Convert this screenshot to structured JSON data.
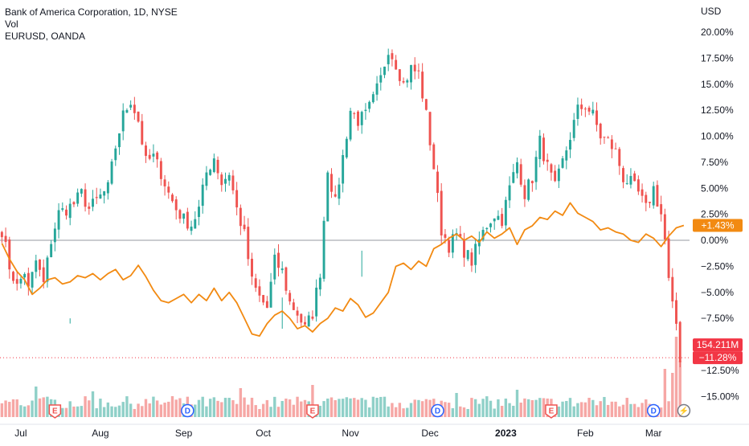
{
  "legend": {
    "line1": "Bank of America Corporation, 1D, NYSE",
    "line2": "Vol",
    "line3": "EURUSD, OANDA"
  },
  "currency_label": "USD",
  "colors": {
    "up": "#26a69a",
    "down": "#ef5350",
    "up_volume": "#8fd0c8",
    "down_volume": "#f6a7a5",
    "compare_line": "#f28a12",
    "zero_line": "#9598a1",
    "tag_up": "#f28a12",
    "tag_down": "#f23645",
    "marker_earnings": "#ef5350",
    "marker_dividend": "#2962ff"
  },
  "tags": {
    "compare_value": "+1.43%",
    "volume_value": "154.211M",
    "price_change": "−11.28%"
  },
  "chart_data": {
    "type": "candlestick",
    "y_axis": {
      "unit": "percent",
      "ylim": [
        -17.0,
        21.2
      ],
      "tick_values": [
        20,
        17.5,
        15,
        12.5,
        10,
        7.5,
        5,
        2.5,
        0,
        -2.5,
        -5,
        -7.5,
        -12.5,
        -15
      ],
      "tick_labels": [
        "20.00%",
        "17.50%",
        "15.00%",
        "12.50%",
        "10.00%",
        "7.50%",
        "5.00%",
        "2.50%",
        "0.00%",
        "−2.50%",
        "−5.00%",
        "−7.50%",
        "−12.50%",
        "−15.00%"
      ]
    },
    "x_axis": {
      "labels": [
        "Jul",
        "Aug",
        "Sep",
        "Oct",
        "Nov",
        "Dec",
        "2023",
        "Feb",
        "Mar"
      ],
      "label_index": [
        5,
        26,
        48,
        69,
        92,
        113,
        133,
        154,
        172
      ],
      "bold": [
        "2023"
      ]
    },
    "n_bars": 182,
    "series": [
      {
        "name": "Bank of America Corporation",
        "style": "candles",
        "anchors": [
          [
            0,
            1.0
          ],
          [
            2,
            -2.5
          ],
          [
            4,
            -4.5
          ],
          [
            6,
            -3.0
          ],
          [
            7,
            -4.8
          ],
          [
            9,
            -2.0
          ],
          [
            11,
            -4.2
          ],
          [
            13,
            0.0
          ],
          [
            15,
            2.6
          ],
          [
            17,
            3.0
          ],
          [
            19,
            3.5
          ],
          [
            21,
            4.5
          ],
          [
            23,
            3.0
          ],
          [
            25,
            3.8
          ],
          [
            28,
            5.0
          ],
          [
            30,
            9.0
          ],
          [
            32,
            12.0
          ],
          [
            34,
            13.5
          ],
          [
            36,
            11.5
          ],
          [
            38,
            7.5
          ],
          [
            40,
            8.0
          ],
          [
            42,
            6.5
          ],
          [
            44,
            4.5
          ],
          [
            46,
            3.0
          ],
          [
            48,
            2.0
          ],
          [
            50,
            1.5
          ],
          [
            52,
            3.0
          ],
          [
            54,
            6.5
          ],
          [
            56,
            8.0
          ],
          [
            58,
            5.5
          ],
          [
            60,
            6.5
          ],
          [
            62,
            3.0
          ],
          [
            64,
            0.5
          ],
          [
            66,
            -4.0
          ],
          [
            68,
            -5.5
          ],
          [
            70,
            -6.5
          ],
          [
            72,
            -2.0
          ],
          [
            74,
            -3.0
          ],
          [
            76,
            -6.0
          ],
          [
            78,
            -7.0
          ],
          [
            80,
            -8.5
          ],
          [
            82,
            -7.0
          ],
          [
            84,
            -3.0
          ],
          [
            86,
            7.0
          ],
          [
            88,
            3.5
          ],
          [
            90,
            8.0
          ],
          [
            92,
            12.5
          ],
          [
            94,
            11.5
          ],
          [
            96,
            12.0
          ],
          [
            98,
            13.5
          ],
          [
            100,
            15.5
          ],
          [
            102,
            18.5
          ],
          [
            104,
            17.0
          ],
          [
            106,
            15.0
          ],
          [
            108,
            16.5
          ],
          [
            110,
            16.0
          ],
          [
            112,
            12.0
          ],
          [
            114,
            7.0
          ],
          [
            116,
            1.0
          ],
          [
            118,
            -0.5
          ],
          [
            120,
            0.5
          ],
          [
            122,
            -1.0
          ],
          [
            124,
            -2.0
          ],
          [
            126,
            0.0
          ],
          [
            128,
            1.5
          ],
          [
            130,
            2.5
          ],
          [
            132,
            2.0
          ],
          [
            134,
            5.0
          ],
          [
            136,
            7.5
          ],
          [
            138,
            4.5
          ],
          [
            140,
            6.0
          ],
          [
            142,
            9.5
          ],
          [
            144,
            7.0
          ],
          [
            146,
            5.0
          ],
          [
            148,
            7.5
          ],
          [
            150,
            10.0
          ],
          [
            152,
            12.5
          ],
          [
            154,
            13.0
          ],
          [
            156,
            12.0
          ],
          [
            158,
            10.0
          ],
          [
            160,
            9.5
          ],
          [
            162,
            8.5
          ],
          [
            164,
            6.0
          ],
          [
            166,
            5.5
          ],
          [
            168,
            4.5
          ],
          [
            170,
            3.0
          ],
          [
            172,
            5.0
          ],
          [
            174,
            2.5
          ],
          [
            175,
            0.0
          ],
          [
            176,
            -4.0
          ],
          [
            177,
            -6.5
          ],
          [
            178,
            -8.0
          ],
          [
            179,
            -11.28
          ]
        ],
        "highlights": [
          [
            18,
            -8.0,
            -7.5
          ],
          [
            74,
            -8.5,
            -5.5
          ],
          [
            95,
            -3.5,
            -1.0
          ]
        ]
      },
      {
        "name": "EURUSD, OANDA",
        "style": "line",
        "values": [
          [
            0,
            -0.3
          ],
          [
            2,
            -1.8
          ],
          [
            4,
            -3.0
          ],
          [
            6,
            -3.8
          ],
          [
            8,
            -5.2
          ],
          [
            10,
            -4.6
          ],
          [
            12,
            -3.8
          ],
          [
            14,
            -3.6
          ],
          [
            16,
            -4.2
          ],
          [
            18,
            -4.0
          ],
          [
            20,
            -3.4
          ],
          [
            22,
            -3.6
          ],
          [
            24,
            -3.2
          ],
          [
            26,
            -3.8
          ],
          [
            28,
            -3.2
          ],
          [
            30,
            -2.8
          ],
          [
            32,
            -3.8
          ],
          [
            34,
            -3.4
          ],
          [
            36,
            -2.4
          ],
          [
            38,
            -3.5
          ],
          [
            40,
            -4.8
          ],
          [
            42,
            -5.8
          ],
          [
            44,
            -6.0
          ],
          [
            46,
            -5.6
          ],
          [
            48,
            -5.2
          ],
          [
            50,
            -6.0
          ],
          [
            52,
            -5.2
          ],
          [
            54,
            -5.8
          ],
          [
            56,
            -4.6
          ],
          [
            58,
            -5.8
          ],
          [
            60,
            -5.0
          ],
          [
            62,
            -6.0
          ],
          [
            64,
            -7.5
          ],
          [
            66,
            -9.0
          ],
          [
            68,
            -9.2
          ],
          [
            70,
            -8.0
          ],
          [
            72,
            -7.2
          ],
          [
            74,
            -6.8
          ],
          [
            76,
            -7.5
          ],
          [
            78,
            -8.5
          ],
          [
            80,
            -8.2
          ],
          [
            82,
            -8.8
          ],
          [
            84,
            -8.0
          ],
          [
            86,
            -7.5
          ],
          [
            88,
            -6.5
          ],
          [
            90,
            -6.8
          ],
          [
            92,
            -5.6
          ],
          [
            94,
            -6.2
          ],
          [
            96,
            -7.4
          ],
          [
            98,
            -7.0
          ],
          [
            100,
            -6.0
          ],
          [
            102,
            -5.0
          ],
          [
            104,
            -2.5
          ],
          [
            106,
            -2.2
          ],
          [
            108,
            -2.8
          ],
          [
            110,
            -2.0
          ],
          [
            112,
            -2.5
          ],
          [
            114,
            -0.8
          ],
          [
            116,
            -0.4
          ],
          [
            118,
            0.2
          ],
          [
            120,
            0.6
          ],
          [
            122,
            0.0
          ],
          [
            124,
            0.4
          ],
          [
            126,
            -0.2
          ],
          [
            128,
            0.8
          ],
          [
            130,
            0.2
          ],
          [
            132,
            0.6
          ],
          [
            134,
            1.2
          ],
          [
            136,
            -0.4
          ],
          [
            138,
            1.0
          ],
          [
            140,
            1.4
          ],
          [
            142,
            2.2
          ],
          [
            144,
            2.0
          ],
          [
            146,
            2.8
          ],
          [
            148,
            2.4
          ],
          [
            150,
            3.6
          ],
          [
            152,
            2.6
          ],
          [
            154,
            2.2
          ],
          [
            156,
            1.8
          ],
          [
            158,
            1.0
          ],
          [
            160,
            1.2
          ],
          [
            162,
            0.8
          ],
          [
            164,
            0.6
          ],
          [
            166,
            0.0
          ],
          [
            168,
            -0.2
          ],
          [
            170,
            0.6
          ],
          [
            172,
            0.2
          ],
          [
            174,
            -0.6
          ],
          [
            176,
            0.4
          ],
          [
            178,
            1.2
          ],
          [
            180,
            1.43
          ]
        ]
      },
      {
        "name": "Vol",
        "style": "histogram",
        "spikes": [
          [
            9,
            38
          ],
          [
            24,
            32
          ],
          [
            45,
            26
          ],
          [
            63,
            36
          ],
          [
            82,
            40
          ],
          [
            99,
            24
          ],
          [
            120,
            30
          ],
          [
            136,
            34
          ],
          [
            155,
            24
          ],
          [
            170,
            22
          ],
          [
            175,
            60
          ],
          [
            177,
            55
          ],
          [
            178,
            100
          ],
          [
            179,
            70
          ]
        ]
      }
    ],
    "markers": [
      {
        "type": "earnings",
        "label": "E",
        "index": 14
      },
      {
        "type": "dividend",
        "label": "D",
        "index": 49
      },
      {
        "type": "earnings",
        "label": "E",
        "index": 82
      },
      {
        "type": "dividend",
        "label": "D",
        "index": 115
      },
      {
        "type": "earnings",
        "label": "E",
        "index": 145
      },
      {
        "type": "dividend",
        "label": "D",
        "index": 172
      },
      {
        "type": "split",
        "label": "⚡",
        "index": 180
      }
    ]
  }
}
